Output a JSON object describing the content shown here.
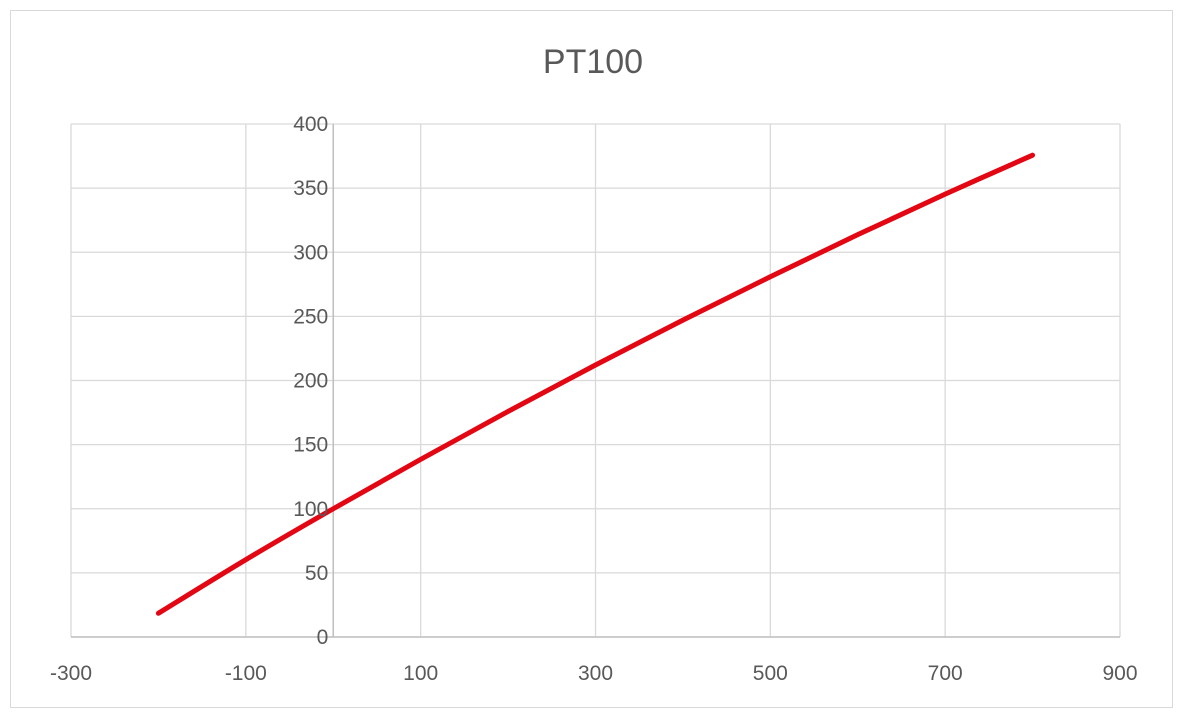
{
  "chart_data": {
    "type": "scatter",
    "title": "PT100",
    "xlabel": "",
    "ylabel": "",
    "xlim": [
      -300,
      900
    ],
    "ylim": [
      0,
      400
    ],
    "x_ticks": [
      -300,
      -100,
      100,
      300,
      500,
      700,
      900
    ],
    "y_ticks": [
      0,
      50,
      100,
      150,
      200,
      250,
      300,
      350,
      400
    ],
    "x_tick_labels": [
      "-300",
      "-100",
      "100",
      "300",
      "500",
      "700",
      "900"
    ],
    "y_tick_labels": [
      "0",
      "50",
      "100",
      "150",
      "200",
      "250",
      "300",
      "350",
      "400"
    ],
    "grid": true,
    "legend": "none",
    "line_style": "smooth-line",
    "colors": {
      "series": "#e30613",
      "grid": "#d9d9d9",
      "axis": "#bfbfbf",
      "text": "#595959"
    },
    "series": [
      {
        "color": "#e30613",
        "x": [
          -200,
          -100,
          0,
          100,
          200,
          300,
          400,
          500,
          600,
          700,
          800
        ],
        "y": [
          18.5,
          60.3,
          100,
          138.5,
          175.9,
          212.1,
          247.1,
          280.9,
          313.7,
          345.3,
          375.7
        ]
      }
    ]
  }
}
